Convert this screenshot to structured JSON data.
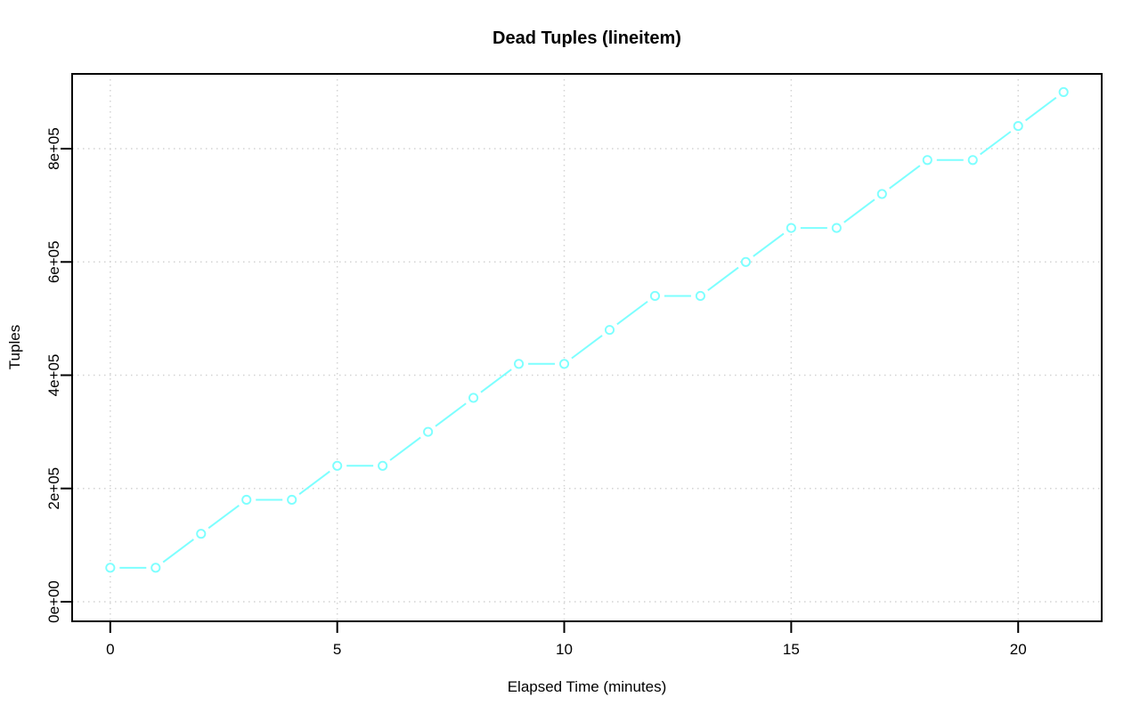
{
  "chart_data": {
    "type": "line",
    "title": "Dead Tuples (lineitem)",
    "xlabel": "Elapsed Time (minutes)",
    "ylabel": "Tuples",
    "x": [
      0,
      1,
      2,
      3,
      4,
      5,
      6,
      7,
      8,
      9,
      10,
      11,
      12,
      13,
      14,
      15,
      16,
      17,
      18,
      19,
      20,
      21
    ],
    "series": [
      {
        "name": "dead-tuples-lineitem",
        "values": [
          60000,
          60000,
          120000,
          180000,
          180000,
          240000,
          240000,
          300000,
          360000,
          420000,
          420000,
          480000,
          540000,
          540000,
          600000,
          660000,
          660000,
          720000,
          780000,
          780000,
          840000,
          900000
        ]
      }
    ],
    "x_ticks": {
      "values": [
        0,
        5,
        10,
        15,
        20
      ],
      "labels": [
        "0",
        "5",
        "10",
        "15",
        "20"
      ]
    },
    "y_ticks": {
      "values": [
        0,
        200000,
        400000,
        600000,
        800000
      ],
      "labels": [
        "0e+00",
        "2e+05",
        "4e+05",
        "6e+05",
        "8e+05"
      ]
    },
    "xlim": [
      -0.84,
      21.84
    ],
    "ylim": [
      -34600,
      932100
    ],
    "grid": "dotted both axes",
    "legend_position": "none",
    "marker": "open-circle",
    "line_type": "points-and-segments-with-gaps",
    "style": {
      "line_color": "#7dffff",
      "marker_fill": "#ffffff",
      "grid_color": "#d3d3d3",
      "axis_color": "#000000",
      "text_color": "#000000",
      "background": "#ffffff"
    }
  }
}
